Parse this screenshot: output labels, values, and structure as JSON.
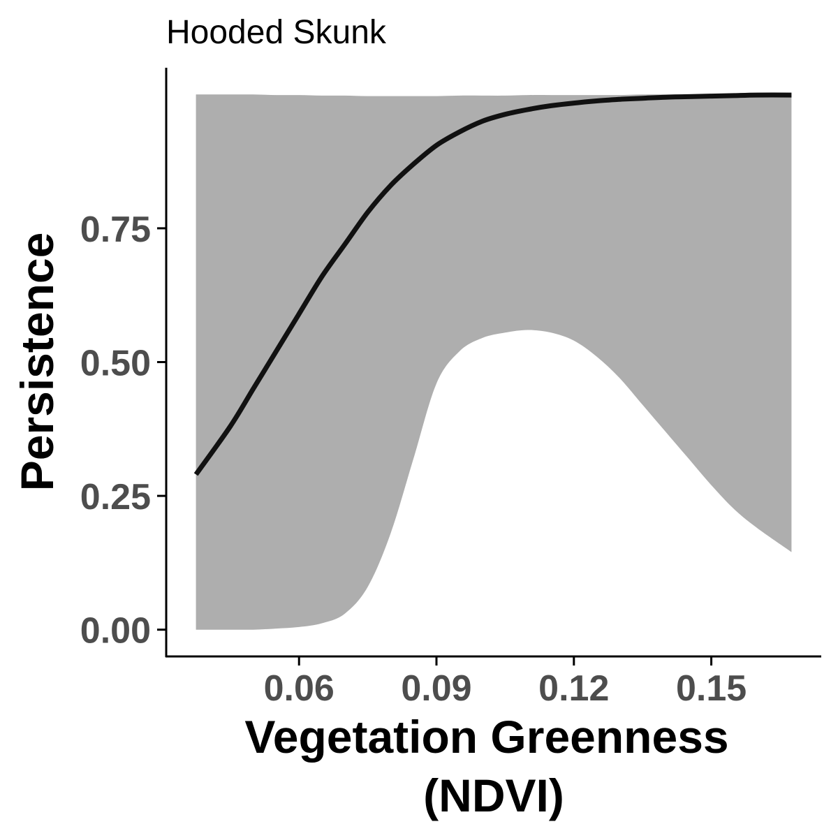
{
  "chart_data": {
    "type": "line",
    "title": "Hooded Skunk",
    "xlabel_lines": [
      "Vegetation Greenness",
      "(NDVI)"
    ],
    "ylabel": "Persistence",
    "xlim": [
      0.031,
      0.174
    ],
    "ylim": [
      -0.05,
      1.05
    ],
    "x_ticks": [
      0.06,
      0.09,
      0.12,
      0.15
    ],
    "x_tick_labels": [
      "0.06",
      "0.09",
      "0.12",
      "0.15"
    ],
    "y_ticks": [
      0.0,
      0.25,
      0.5,
      0.75
    ],
    "y_tick_labels": [
      "0.00",
      "0.25",
      "0.50",
      "0.75"
    ],
    "grid": false,
    "legend": "none",
    "colors": {
      "line": "#111111",
      "ribbon": "#aeaeae",
      "axis": "#000000",
      "tick_text": "#4d4d4d"
    },
    "series": [
      {
        "x": [
          0.0375,
          0.045,
          0.05,
          0.055,
          0.06,
          0.065,
          0.07,
          0.075,
          0.08,
          0.085,
          0.09,
          0.095,
          0.1,
          0.105,
          0.11,
          0.115,
          0.12,
          0.125,
          0.13,
          0.135,
          0.14,
          0.145,
          0.15,
          0.155,
          0.16,
          0.1675
        ],
        "y": [
          0.29,
          0.38,
          0.45,
          0.52,
          0.59,
          0.66,
          0.72,
          0.78,
          0.83,
          0.87,
          0.905,
          0.93,
          0.95,
          0.963,
          0.972,
          0.979,
          0.984,
          0.988,
          0.991,
          0.993,
          0.995,
          0.996,
          0.997,
          0.998,
          0.999,
          0.999
        ],
        "lower": [
          0.0,
          0.0,
          0.0,
          0.002,
          0.005,
          0.012,
          0.03,
          0.08,
          0.18,
          0.32,
          0.46,
          0.52,
          0.545,
          0.555,
          0.56,
          0.555,
          0.54,
          0.51,
          0.47,
          0.42,
          0.37,
          0.32,
          0.27,
          0.225,
          0.19,
          0.145
        ],
        "upper": [
          1.0,
          1.0,
          1.0,
          0.999,
          0.999,
          0.998,
          0.998,
          0.997,
          0.997,
          0.997,
          0.997,
          0.998,
          0.998,
          0.998,
          0.999,
          0.999,
          0.999,
          0.999,
          0.999,
          1.0,
          1.0,
          1.0,
          1.0,
          1.0,
          1.0,
          1.0
        ]
      }
    ]
  }
}
